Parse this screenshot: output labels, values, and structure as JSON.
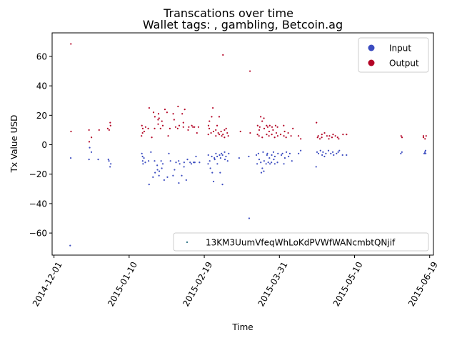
{
  "chart_data": {
    "type": "scatter",
    "title": "Transcations over time",
    "subtitle": "Wallet tags: , gambling, Betcoin.ag",
    "xlabel": "Time",
    "ylabel": "Tx Value USD",
    "x_type": "date",
    "xlim": [
      "2014-11-30",
      "2015-06-21"
    ],
    "ylim": [
      -75,
      76
    ],
    "x_ticks": [
      "2014-12-01",
      "2015-01-10",
      "2015-02-19",
      "2015-03-31",
      "2015-05-10",
      "2015-06-19"
    ],
    "y_ticks": [
      -60,
      -40,
      -20,
      0,
      20,
      40,
      60
    ],
    "grid": false,
    "legend_top": {
      "placement": "top-right",
      "entries": [
        "Input",
        "Output"
      ]
    },
    "legend_bottom": {
      "placement": "bottom-right",
      "entries": [
        "13KM3UumVfeqWhLoKdPVWfWANcmbtQNjif"
      ]
    },
    "colors": {
      "input": "#3b4cc0",
      "output": "#b40426"
    },
    "series": [
      {
        "name": "Output",
        "color": "#b40426",
        "points": [
          [
            "2014-12-10",
            68.5
          ],
          [
            "2014-12-10",
            9
          ],
          [
            "2014-12-20",
            10
          ],
          [
            "2014-12-20",
            2
          ],
          [
            "2014-12-21",
            5
          ],
          [
            "2014-12-25",
            10
          ],
          [
            "2014-12-30",
            11
          ],
          [
            "2014-12-30",
            10
          ],
          [
            "2014-12-31",
            13
          ],
          [
            "2014-12-31",
            15
          ],
          [
            "2015-01-17",
            13
          ],
          [
            "2015-01-17",
            11
          ],
          [
            "2015-01-17",
            8
          ],
          [
            "2015-01-17",
            6
          ],
          [
            "2015-01-18",
            9
          ],
          [
            "2015-01-19",
            12
          ],
          [
            "2015-01-20",
            11
          ],
          [
            "2015-01-21",
            25
          ],
          [
            "2015-01-22",
            5
          ],
          [
            "2015-01-23",
            22
          ],
          [
            "2015-01-24",
            19
          ],
          [
            "2015-01-24",
            11
          ],
          [
            "2015-01-25",
            17
          ],
          [
            "2015-01-25",
            14
          ],
          [
            "2015-01-26",
            21
          ],
          [
            "2015-01-26",
            18
          ],
          [
            "2015-01-27",
            16
          ],
          [
            "2015-01-27",
            11
          ],
          [
            "2015-01-28",
            13
          ],
          [
            "2015-01-29",
            24
          ],
          [
            "2015-01-30",
            22
          ],
          [
            "2015-01-31",
            6
          ],
          [
            "2015-02-01",
            11
          ],
          [
            "2015-02-02",
            21
          ],
          [
            "2015-02-03",
            17
          ],
          [
            "2015-02-04",
            12
          ],
          [
            "2015-02-05",
            26
          ],
          [
            "2015-02-05",
            11
          ],
          [
            "2015-02-06",
            13
          ],
          [
            "2015-02-07",
            21
          ],
          [
            "2015-02-08",
            15
          ],
          [
            "2015-02-08",
            12
          ],
          [
            "2015-02-09",
            24
          ],
          [
            "2015-02-10",
            10
          ],
          [
            "2015-02-11",
            12
          ],
          [
            "2015-02-12",
            13
          ],
          [
            "2015-02-13",
            12
          ],
          [
            "2015-02-14",
            12
          ],
          [
            "2015-02-15",
            8
          ],
          [
            "2015-02-16",
            12
          ],
          [
            "2015-02-21",
            13
          ],
          [
            "2015-02-21",
            7
          ],
          [
            "2015-02-22",
            11
          ],
          [
            "2015-02-22",
            16
          ],
          [
            "2015-02-23",
            19
          ],
          [
            "2015-02-23",
            8
          ],
          [
            "2015-02-24",
            25
          ],
          [
            "2015-02-24",
            9
          ],
          [
            "2015-02-25",
            6
          ],
          [
            "2015-02-25",
            10
          ],
          [
            "2015-02-26",
            8
          ],
          [
            "2015-02-26",
            13
          ],
          [
            "2015-02-27",
            19
          ],
          [
            "2015-02-27",
            7
          ],
          [
            "2015-02-28",
            9
          ],
          [
            "2015-02-28",
            6
          ],
          [
            "2015-03-01",
            61
          ],
          [
            "2015-03-01",
            7
          ],
          [
            "2015-03-02",
            10
          ],
          [
            "2015-03-02",
            5
          ],
          [
            "2015-03-03",
            8
          ],
          [
            "2015-03-03",
            11
          ],
          [
            "2015-03-04",
            6
          ],
          [
            "2015-03-10",
            9
          ],
          [
            "2015-03-15",
            50
          ],
          [
            "2015-03-15",
            8
          ],
          [
            "2015-03-19",
            13
          ],
          [
            "2015-03-19",
            7
          ],
          [
            "2015-03-20",
            10
          ],
          [
            "2015-03-20",
            6
          ],
          [
            "2015-03-21",
            19
          ],
          [
            "2015-03-21",
            12
          ],
          [
            "2015-03-22",
            16
          ],
          [
            "2015-03-22",
            5
          ],
          [
            "2015-03-23",
            18
          ],
          [
            "2015-03-23",
            11
          ],
          [
            "2015-03-24",
            13
          ],
          [
            "2015-03-24",
            7
          ],
          [
            "2015-03-25",
            12
          ],
          [
            "2015-03-25",
            6
          ],
          [
            "2015-03-26",
            9
          ],
          [
            "2015-03-26",
            13
          ],
          [
            "2015-03-27",
            12
          ],
          [
            "2015-03-27",
            7
          ],
          [
            "2015-03-28",
            10
          ],
          [
            "2015-03-28",
            5
          ],
          [
            "2015-03-29",
            13
          ],
          [
            "2015-03-29",
            8
          ],
          [
            "2015-03-30",
            6
          ],
          [
            "2015-03-30",
            12
          ],
          [
            "2015-04-01",
            7
          ],
          [
            "2015-04-02",
            13
          ],
          [
            "2015-04-02",
            6
          ],
          [
            "2015-04-03",
            9
          ],
          [
            "2015-04-04",
            5
          ],
          [
            "2015-04-05",
            8
          ],
          [
            "2015-04-06",
            6
          ],
          [
            "2015-04-07",
            11
          ],
          [
            "2015-04-10",
            6
          ],
          [
            "2015-04-11",
            4
          ],
          [
            "2015-04-20",
            15
          ],
          [
            "2015-04-20",
            5
          ],
          [
            "2015-04-21",
            6
          ],
          [
            "2015-04-22",
            4
          ],
          [
            "2015-04-23",
            7
          ],
          [
            "2015-04-23",
            5
          ],
          [
            "2015-04-24",
            8
          ],
          [
            "2015-04-25",
            6
          ],
          [
            "2015-04-26",
            4
          ],
          [
            "2015-04-27",
            6
          ],
          [
            "2015-04-28",
            5
          ],
          [
            "2015-04-29",
            7
          ],
          [
            "2015-04-30",
            6
          ],
          [
            "2015-05-01",
            5
          ],
          [
            "2015-05-02",
            4
          ],
          [
            "2015-05-04",
            7
          ],
          [
            "2015-05-06",
            7
          ],
          [
            "2015-06-04",
            6
          ],
          [
            "2015-06-04",
            5
          ],
          [
            "2015-06-16",
            6
          ],
          [
            "2015-06-16",
            5
          ],
          [
            "2015-06-17",
            4
          ],
          [
            "2015-06-17",
            6
          ]
        ]
      },
      {
        "name": "Input",
        "color": "#3b4cc0",
        "points": [
          [
            "2014-12-10",
            -68.5
          ],
          [
            "2014-12-10",
            -9
          ],
          [
            "2014-12-20",
            -10
          ],
          [
            "2014-12-20",
            -2
          ],
          [
            "2014-12-21",
            -5
          ],
          [
            "2014-12-25",
            -10
          ],
          [
            "2014-12-30",
            -11
          ],
          [
            "2014-12-30",
            -10
          ],
          [
            "2014-12-31",
            -13
          ],
          [
            "2014-12-31",
            -15
          ],
          [
            "2015-01-17",
            -13
          ],
          [
            "2015-01-17",
            -11
          ],
          [
            "2015-01-17",
            -8
          ],
          [
            "2015-01-17",
            -6
          ],
          [
            "2015-01-18",
            -9
          ],
          [
            "2015-01-19",
            -12
          ],
          [
            "2015-01-20",
            -11
          ],
          [
            "2015-01-21",
            -27
          ],
          [
            "2015-01-22",
            -5
          ],
          [
            "2015-01-23",
            -22
          ],
          [
            "2015-01-24",
            -19
          ],
          [
            "2015-01-24",
            -11
          ],
          [
            "2015-01-25",
            -17
          ],
          [
            "2015-01-25",
            -14
          ],
          [
            "2015-01-26",
            -21
          ],
          [
            "2015-01-26",
            -18
          ],
          [
            "2015-01-27",
            -16
          ],
          [
            "2015-01-27",
            -11
          ],
          [
            "2015-01-28",
            -13
          ],
          [
            "2015-01-29",
            -24
          ],
          [
            "2015-01-30",
            -22
          ],
          [
            "2015-01-31",
            -6
          ],
          [
            "2015-02-01",
            -11
          ],
          [
            "2015-02-02",
            -21
          ],
          [
            "2015-02-03",
            -17
          ],
          [
            "2015-02-04",
            -12
          ],
          [
            "2015-02-05",
            -26
          ],
          [
            "2015-02-05",
            -11
          ],
          [
            "2015-02-06",
            -13
          ],
          [
            "2015-02-07",
            -21
          ],
          [
            "2015-02-08",
            -15
          ],
          [
            "2015-02-08",
            -12
          ],
          [
            "2015-02-09",
            -24
          ],
          [
            "2015-02-10",
            -10
          ],
          [
            "2015-02-11",
            -12
          ],
          [
            "2015-02-12",
            -13
          ],
          [
            "2015-02-13",
            -12
          ],
          [
            "2015-02-14",
            -12
          ],
          [
            "2015-02-15",
            -8
          ],
          [
            "2015-02-16",
            -12
          ],
          [
            "2015-02-21",
            -13
          ],
          [
            "2015-02-21",
            -7
          ],
          [
            "2015-02-22",
            -11
          ],
          [
            "2015-02-22",
            -16
          ],
          [
            "2015-02-23",
            -19
          ],
          [
            "2015-02-23",
            -8
          ],
          [
            "2015-02-24",
            -25
          ],
          [
            "2015-02-24",
            -9
          ],
          [
            "2015-02-25",
            -6
          ],
          [
            "2015-02-25",
            -10
          ],
          [
            "2015-02-26",
            -8
          ],
          [
            "2015-02-26",
            -13
          ],
          [
            "2015-02-27",
            -19
          ],
          [
            "2015-02-27",
            -7
          ],
          [
            "2015-02-28",
            -9
          ],
          [
            "2015-02-28",
            -6
          ],
          [
            "2015-03-01",
            -27
          ],
          [
            "2015-03-01",
            -7
          ],
          [
            "2015-03-02",
            -10
          ],
          [
            "2015-03-02",
            -5
          ],
          [
            "2015-03-03",
            -8
          ],
          [
            "2015-03-03",
            -11
          ],
          [
            "2015-03-04",
            -6
          ],
          [
            "2015-03-10",
            -9
          ],
          [
            "2015-03-15",
            -50
          ],
          [
            "2015-03-15",
            -8
          ],
          [
            "2015-03-19",
            -13
          ],
          [
            "2015-03-19",
            -7
          ],
          [
            "2015-03-20",
            -10
          ],
          [
            "2015-03-20",
            -6
          ],
          [
            "2015-03-21",
            -19
          ],
          [
            "2015-03-21",
            -12
          ],
          [
            "2015-03-22",
            -16
          ],
          [
            "2015-03-22",
            -5
          ],
          [
            "2015-03-23",
            -18
          ],
          [
            "2015-03-23",
            -11
          ],
          [
            "2015-03-24",
            -13
          ],
          [
            "2015-03-24",
            -7
          ],
          [
            "2015-03-25",
            -12
          ],
          [
            "2015-03-25",
            -6
          ],
          [
            "2015-03-26",
            -9
          ],
          [
            "2015-03-26",
            -13
          ],
          [
            "2015-03-27",
            -12
          ],
          [
            "2015-03-27",
            -7
          ],
          [
            "2015-03-28",
            -10
          ],
          [
            "2015-03-28",
            -5
          ],
          [
            "2015-03-29",
            -13
          ],
          [
            "2015-03-29",
            -8
          ],
          [
            "2015-03-30",
            -6
          ],
          [
            "2015-03-30",
            -12
          ],
          [
            "2015-04-01",
            -7
          ],
          [
            "2015-04-02",
            -13
          ],
          [
            "2015-04-02",
            -6
          ],
          [
            "2015-04-03",
            -9
          ],
          [
            "2015-04-04",
            -5
          ],
          [
            "2015-04-05",
            -8
          ],
          [
            "2015-04-06",
            -6
          ],
          [
            "2015-04-07",
            -11
          ],
          [
            "2015-04-10",
            -6
          ],
          [
            "2015-04-11",
            -4
          ],
          [
            "2015-04-20",
            -15
          ],
          [
            "2015-04-20",
            -5
          ],
          [
            "2015-04-21",
            -6
          ],
          [
            "2015-04-22",
            -4
          ],
          [
            "2015-04-23",
            -7
          ],
          [
            "2015-04-23",
            -5
          ],
          [
            "2015-04-24",
            -8
          ],
          [
            "2015-04-25",
            -6
          ],
          [
            "2015-04-26",
            -4
          ],
          [
            "2015-04-27",
            -6
          ],
          [
            "2015-04-28",
            -5
          ],
          [
            "2015-04-29",
            -7
          ],
          [
            "2015-04-30",
            -6
          ],
          [
            "2015-05-01",
            -5
          ],
          [
            "2015-05-02",
            -4
          ],
          [
            "2015-05-04",
            -7
          ],
          [
            "2015-05-06",
            -7
          ],
          [
            "2015-06-04",
            -6
          ],
          [
            "2015-06-04",
            -5
          ],
          [
            "2015-06-16",
            -6
          ],
          [
            "2015-06-16",
            -5
          ],
          [
            "2015-06-17",
            -4
          ],
          [
            "2015-06-17",
            -6
          ]
        ]
      }
    ]
  }
}
